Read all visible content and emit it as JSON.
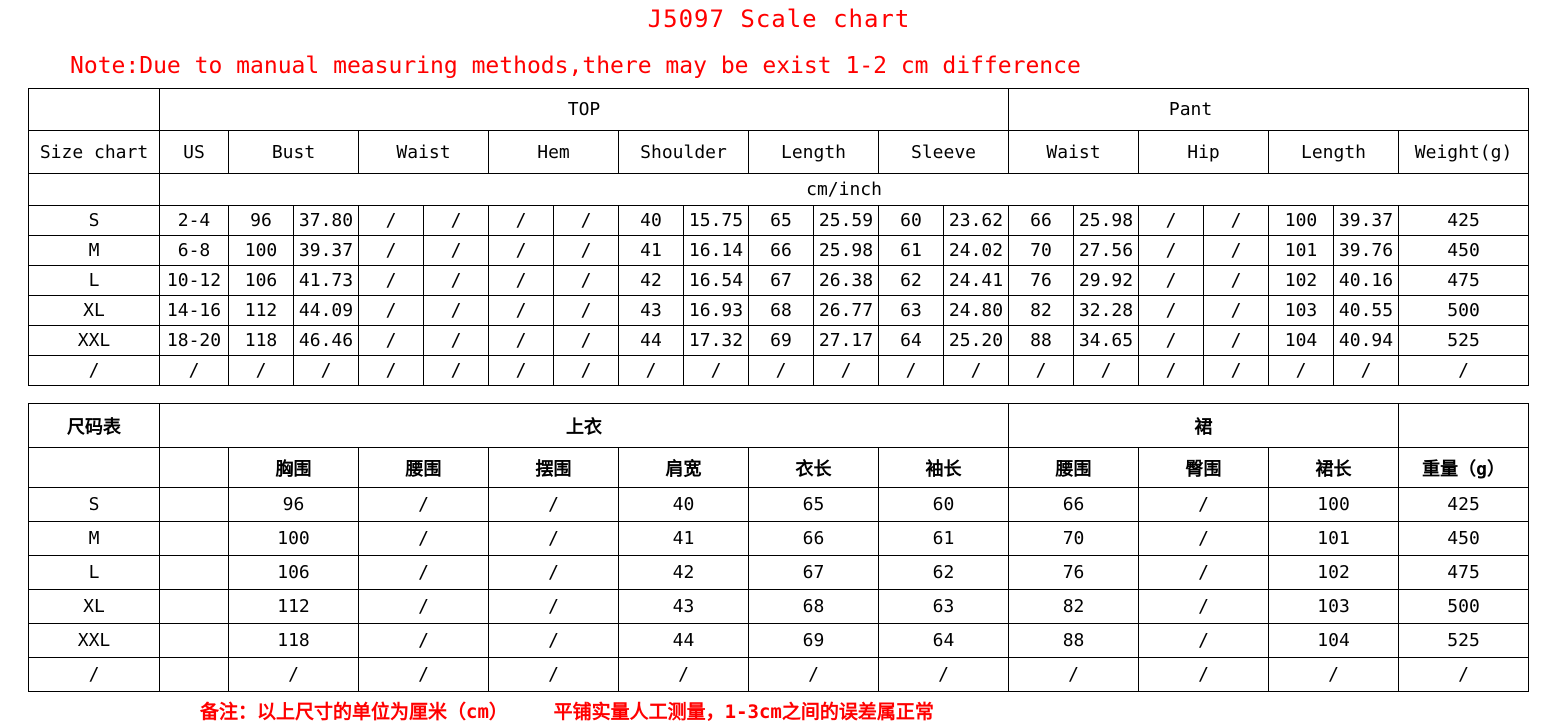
{
  "page": {
    "title": "J5097 Scale chart",
    "note": "Note:Due to manual measuring methods,there may be exist 1-2 cm difference",
    "footer_note": "备注：以上尺寸的单位为厘米（cm）    平铺实量人工测量，1-3cm之间的误差属正常"
  },
  "colors": {
    "accent_red": "#ff0000",
    "border": "#000000",
    "text": "#000000",
    "background": "#ffffff"
  },
  "table1": {
    "group_headers": {
      "corner": "",
      "top": "TOP",
      "pant": "Pant"
    },
    "column_headers": [
      "Size chart",
      "US",
      "Bust",
      "Waist",
      "Hem",
      "Shoulder",
      "Length",
      "Sleeve",
      "Waist",
      "Hip",
      "Length",
      "Weight(g)"
    ],
    "unit_label": "cm/inch",
    "rows": [
      [
        "S",
        "2-4",
        "96",
        "37.80",
        "/",
        "/",
        "/",
        "/",
        "40",
        "15.75",
        "65",
        "25.59",
        "60",
        "23.62",
        "66",
        "25.98",
        "/",
        "/",
        "100",
        "39.37",
        "425"
      ],
      [
        "M",
        "6-8",
        "100",
        "39.37",
        "/",
        "/",
        "/",
        "/",
        "41",
        "16.14",
        "66",
        "25.98",
        "61",
        "24.02",
        "70",
        "27.56",
        "/",
        "/",
        "101",
        "39.76",
        "450"
      ],
      [
        "L",
        "10-12",
        "106",
        "41.73",
        "/",
        "/",
        "/",
        "/",
        "42",
        "16.54",
        "67",
        "26.38",
        "62",
        "24.41",
        "76",
        "29.92",
        "/",
        "/",
        "102",
        "40.16",
        "475"
      ],
      [
        "XL",
        "14-16",
        "112",
        "44.09",
        "/",
        "/",
        "/",
        "/",
        "43",
        "16.93",
        "68",
        "26.77",
        "63",
        "24.80",
        "82",
        "32.28",
        "/",
        "/",
        "103",
        "40.55",
        "500"
      ],
      [
        "XXL",
        "18-20",
        "118",
        "46.46",
        "/",
        "/",
        "/",
        "/",
        "44",
        "17.32",
        "69",
        "27.17",
        "64",
        "25.20",
        "88",
        "34.65",
        "/",
        "/",
        "104",
        "40.94",
        "525"
      ],
      [
        "/",
        "/",
        "/",
        "/",
        "/",
        "/",
        "/",
        "/",
        "/",
        "/",
        "/",
        "/",
        "/",
        "/",
        "/",
        "/",
        "/",
        "/",
        "/",
        "/",
        "/"
      ]
    ]
  },
  "table2": {
    "group_headers": {
      "corner": "尺码表",
      "top": "上衣",
      "skirt": "裙",
      "right": ""
    },
    "column_headers": [
      "",
      "",
      "胸围",
      "腰围",
      "摆围",
      "肩宽",
      "衣长",
      "袖长",
      "腰围",
      "臀围",
      "裙长",
      "重量（g）"
    ],
    "rows": [
      [
        "S",
        "",
        "96",
        "/",
        "/",
        "40",
        "65",
        "60",
        "66",
        "/",
        "100",
        "425"
      ],
      [
        "M",
        "",
        "100",
        "/",
        "/",
        "41",
        "66",
        "61",
        "70",
        "/",
        "101",
        "450"
      ],
      [
        "L",
        "",
        "106",
        "/",
        "/",
        "42",
        "67",
        "62",
        "76",
        "/",
        "102",
        "475"
      ],
      [
        "XL",
        "",
        "112",
        "/",
        "/",
        "43",
        "68",
        "63",
        "82",
        "/",
        "103",
        "500"
      ],
      [
        "XXL",
        "",
        "118",
        "/",
        "/",
        "44",
        "69",
        "64",
        "88",
        "/",
        "104",
        "525"
      ],
      [
        "/",
        "",
        "/",
        "/",
        "/",
        "/",
        "/",
        "/",
        "/",
        "/",
        "/",
        "/"
      ]
    ]
  }
}
